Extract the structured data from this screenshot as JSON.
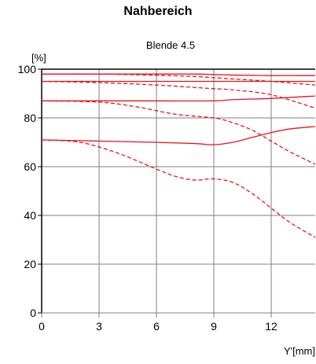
{
  "page_title": "Nahbereich",
  "chart_data": {
    "type": "line",
    "title": "Blende 4.5",
    "ylabel": "[%]",
    "xlabel": "Y'[mm]",
    "xlim": [
      0,
      14.3
    ],
    "ylim": [
      0,
      100
    ],
    "x_ticks": [
      0,
      3,
      6,
      9,
      12
    ],
    "y_ticks": [
      0,
      20,
      40,
      60,
      80,
      100
    ],
    "grid": true,
    "colors": {
      "series": "#e8141b",
      "grid": "#808080",
      "axis": "#000000"
    },
    "series": [
      {
        "style": "solid",
        "x": [
          0,
          3,
          6,
          8,
          9,
          10,
          12,
          14.3
        ],
        "y": [
          98,
          98,
          98,
          98,
          97.8,
          97.6,
          97.4,
          97.4
        ]
      },
      {
        "style": "dashed",
        "x": [
          0,
          3,
          6,
          8,
          9,
          10,
          12,
          14.3
        ],
        "y": [
          98,
          98,
          97.5,
          97,
          96.5,
          96,
          95,
          93.5
        ]
      },
      {
        "style": "solid",
        "x": [
          0,
          3,
          6,
          9,
          12,
          14.3
        ],
        "y": [
          95,
          95,
          95,
          95,
          95,
          95
        ]
      },
      {
        "style": "dashed",
        "x": [
          0,
          3,
          6,
          8,
          9,
          10,
          12,
          14.3
        ],
        "y": [
          95,
          94.5,
          93.5,
          92.5,
          92,
          91.5,
          89.5,
          84
        ]
      },
      {
        "style": "solid",
        "x": [
          0,
          3,
          6,
          9,
          10,
          12,
          14.3
        ],
        "y": [
          87,
          87,
          87,
          87,
          87.5,
          88,
          89
        ]
      },
      {
        "style": "dashed",
        "x": [
          0,
          3,
          5,
          7,
          9,
          10,
          11,
          12,
          13,
          14.3
        ],
        "y": [
          87,
          86.5,
          84.5,
          81.5,
          80,
          78,
          75,
          70.5,
          66,
          61
        ]
      },
      {
        "style": "solid",
        "x": [
          0,
          3,
          6,
          8,
          9,
          10,
          11,
          12,
          13,
          14.3
        ],
        "y": [
          71,
          70.5,
          70,
          69.5,
          69,
          70,
          72,
          74,
          75.5,
          76.5
        ]
      },
      {
        "style": "dashed",
        "x": [
          0,
          2,
          4,
          6,
          7,
          8,
          9,
          10,
          11,
          12,
          13,
          14.3
        ],
        "y": [
          71,
          70,
          65.5,
          59,
          56,
          54.5,
          55,
          53.5,
          49,
          43,
          37,
          31
        ]
      }
    ]
  }
}
